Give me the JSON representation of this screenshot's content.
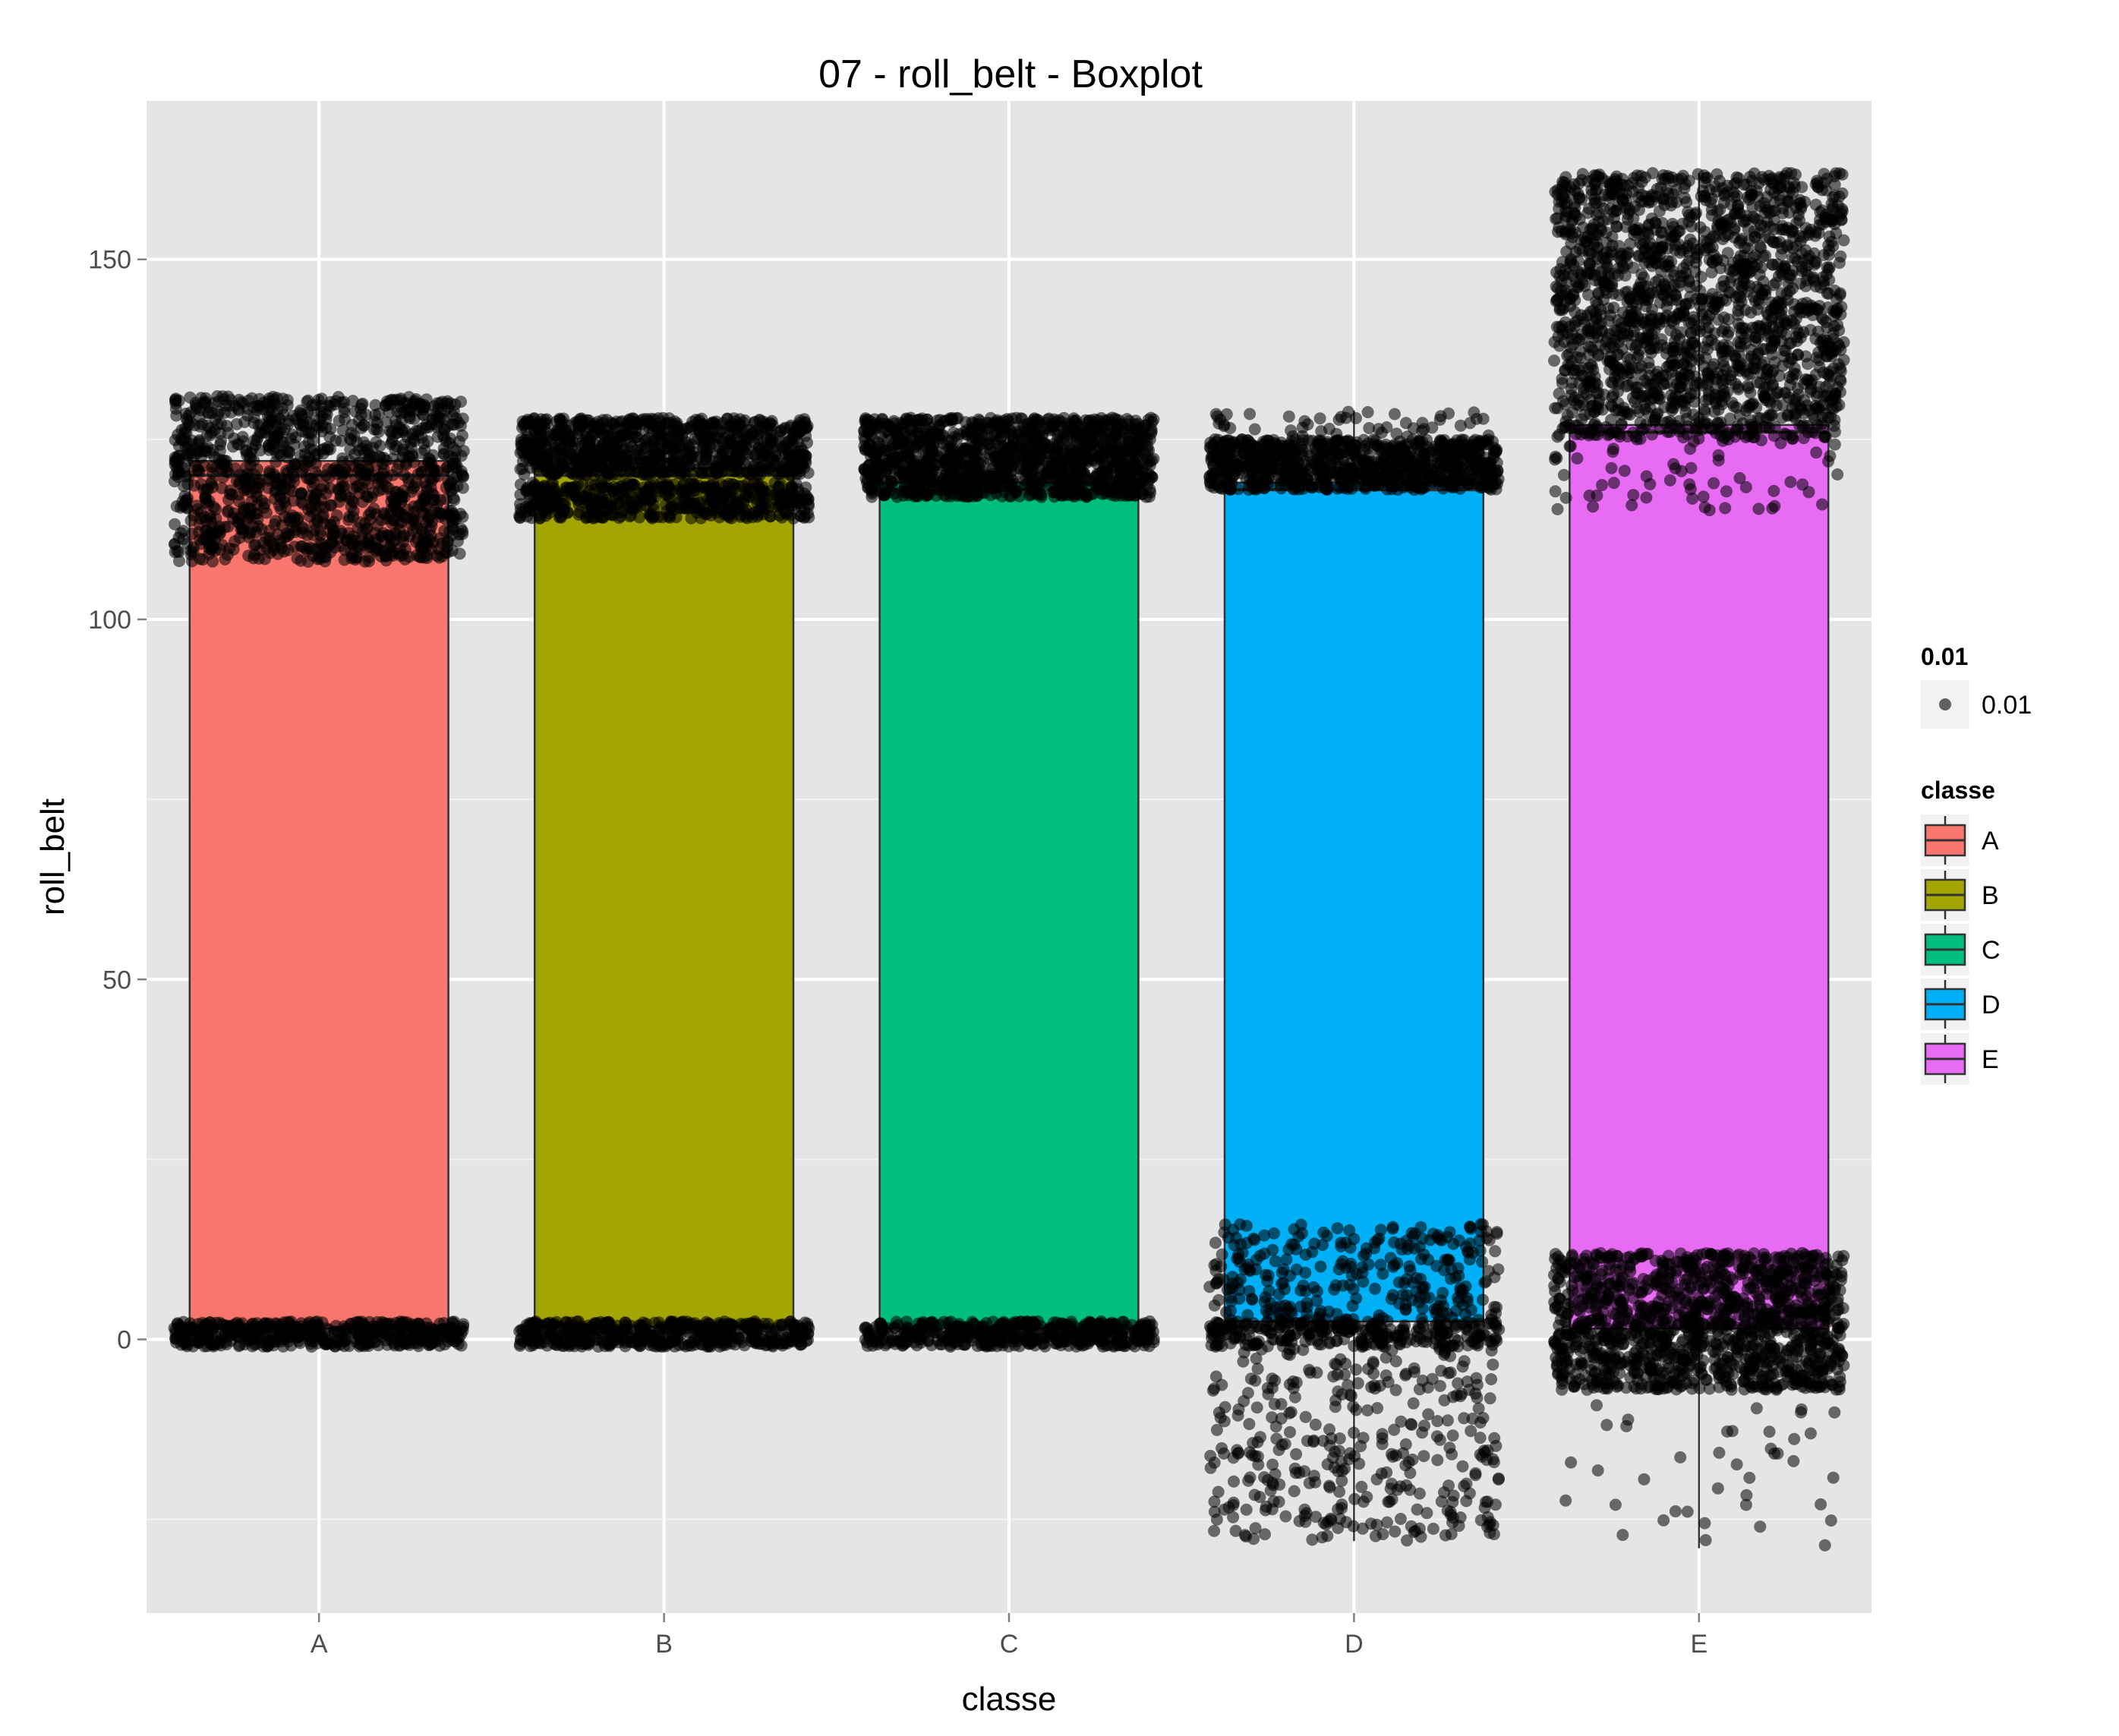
{
  "chart_data": {
    "type": "box",
    "title": "07 - roll_belt - Boxplot",
    "xlabel": "classe",
    "ylabel": "roll_belt",
    "ylim": [
      -38,
      172
    ],
    "yticks": [
      0,
      50,
      100,
      150
    ],
    "ytick_labels": [
      "0",
      "50",
      "100",
      "150"
    ],
    "grid": true,
    "legend_position": "right",
    "categories": [
      "A",
      "B",
      "C",
      "D",
      "E"
    ],
    "colors": {
      "A": "#F8766D",
      "B": "#A3A500",
      "C": "#00BF7D",
      "D": "#00B0F6",
      "E": "#E76BF3"
    },
    "boxes": [
      {
        "category": "A",
        "q1": 1.5,
        "median": 120,
        "q3": 122,
        "whisker_low": 0,
        "whisker_high": 131,
        "point_bands": [
          {
            "lo": -1,
            "hi": 2.5,
            "n": 500
          },
          {
            "lo": 108,
            "hi": 131,
            "n": 1200
          }
        ]
      },
      {
        "category": "B",
        "q1": 1.8,
        "median": 120,
        "q3": 121,
        "whisker_low": 0,
        "whisker_high": 128,
        "point_bands": [
          {
            "lo": -1,
            "hi": 2.5,
            "n": 500
          },
          {
            "lo": 114,
            "hi": 119,
            "n": 500
          },
          {
            "lo": 120,
            "hi": 128,
            "n": 900
          }
        ]
      },
      {
        "category": "C",
        "q1": 1.5,
        "median": 118,
        "q3": 119,
        "whisker_low": 0,
        "whisker_high": 128,
        "point_bands": [
          {
            "lo": -1,
            "hi": 2.5,
            "n": 500
          },
          {
            "lo": 117,
            "hi": 128,
            "n": 1300
          }
        ]
      },
      {
        "category": "D",
        "q1": 2.5,
        "median": 118,
        "q3": 119,
        "whisker_low": -28,
        "whisker_high": 129,
        "point_bands": [
          {
            "lo": 118,
            "hi": 125,
            "n": 900
          },
          {
            "lo": 123,
            "hi": 129,
            "n": 70
          },
          {
            "lo": -1,
            "hi": 2.5,
            "n": 300
          },
          {
            "lo": 2.5,
            "hi": 16,
            "n": 300
          },
          {
            "lo": -28,
            "hi": -1,
            "n": 350
          }
        ]
      },
      {
        "category": "E",
        "q1": 1.5,
        "median": 126,
        "q3": 127,
        "whisker_low": -29,
        "whisker_high": 162,
        "point_bands": [
          {
            "lo": 125,
            "hi": 162,
            "n": 1800
          },
          {
            "lo": 115,
            "hi": 125,
            "n": 60
          },
          {
            "lo": -7,
            "hi": 12,
            "n": 1300
          },
          {
            "lo": -29,
            "hi": -8,
            "n": 40
          }
        ]
      }
    ],
    "legends": [
      {
        "title": "0.01",
        "items": [
          {
            "label": "0.01",
            "symbol": "point"
          }
        ]
      },
      {
        "title": "classe",
        "items": [
          {
            "label": "A",
            "symbol": "box"
          },
          {
            "label": "B",
            "symbol": "box"
          },
          {
            "label": "C",
            "symbol": "box"
          },
          {
            "label": "D",
            "symbol": "box"
          },
          {
            "label": "E",
            "symbol": "box"
          }
        ]
      }
    ]
  }
}
